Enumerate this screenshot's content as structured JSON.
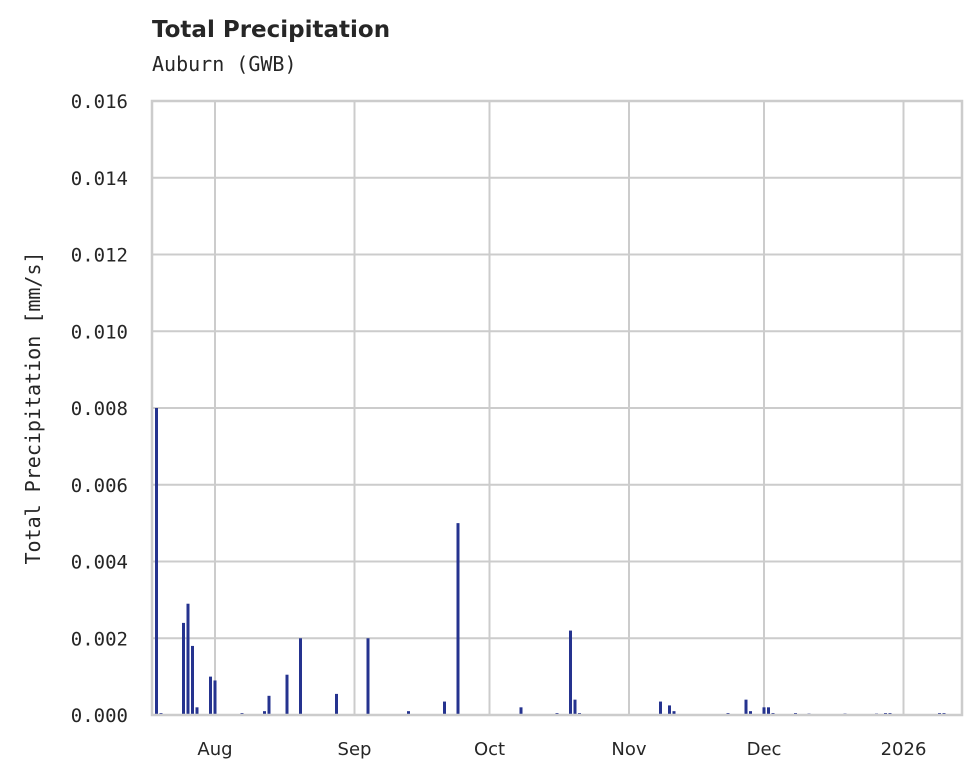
{
  "header": {
    "title": "Total Precipitation",
    "subtitle": "Auburn (GWB)"
  },
  "axes": {
    "ylabel": "Total Precipitation [mm/s]",
    "yticks": [
      "0.000",
      "0.002",
      "0.004",
      "0.006",
      "0.008",
      "0.010",
      "0.012",
      "0.014",
      "0.016"
    ],
    "xticks": [
      "Aug",
      "Sep",
      "Oct",
      "Nov",
      "Dec",
      "2026"
    ]
  },
  "colors": {
    "series": "#25338f",
    "grid": "#cccccc",
    "text": "#262626"
  },
  "chart_data": {
    "type": "bar",
    "title": "Total Precipitation",
    "subtitle": "Auburn (GWB)",
    "xlabel": "",
    "ylabel": "Total Precipitation [mm/s]",
    "ylim": [
      0,
      0.016
    ],
    "yticks": [
      0.0,
      0.002,
      0.004,
      0.006,
      0.008,
      0.01,
      0.012,
      0.014,
      0.016
    ],
    "xticks": [
      "Aug",
      "Sep",
      "Oct",
      "Nov",
      "Dec",
      "2026"
    ],
    "x_range": [
      "2025-07-18",
      "2026-01-14"
    ],
    "grid": true,
    "legend": null,
    "series": [
      {
        "name": "Total Precipitation",
        "points": [
          {
            "date": "2025-07-19",
            "value": 0.0052
          },
          {
            "date": "2025-07-19",
            "value": 0.008
          },
          {
            "date": "2025-07-20",
            "value": 5e-05
          },
          {
            "date": "2025-07-25",
            "value": 0.0024
          },
          {
            "date": "2025-07-26",
            "value": 0.0029
          },
          {
            "date": "2025-07-27",
            "value": 0.0018
          },
          {
            "date": "2025-07-28",
            "value": 0.0002
          },
          {
            "date": "2025-07-31",
            "value": 0.001
          },
          {
            "date": "2025-08-01",
            "value": 0.0009
          },
          {
            "date": "2025-08-07",
            "value": 5e-05
          },
          {
            "date": "2025-08-12",
            "value": 0.0001
          },
          {
            "date": "2025-08-13",
            "value": 0.0005
          },
          {
            "date": "2025-08-17",
            "value": 0.00105
          },
          {
            "date": "2025-08-20",
            "value": 0.001
          },
          {
            "date": "2025-08-20",
            "value": 0.002
          },
          {
            "date": "2025-08-28",
            "value": 0.00055
          },
          {
            "date": "2025-09-04",
            "value": 0.002
          },
          {
            "date": "2025-09-13",
            "value": 0.0001
          },
          {
            "date": "2025-09-21",
            "value": 0.00035
          },
          {
            "date": "2025-09-24",
            "value": 0.005
          },
          {
            "date": "2025-09-24",
            "value": 0.00075
          },
          {
            "date": "2025-10-08",
            "value": 0.0002
          },
          {
            "date": "2025-10-16",
            "value": 5e-05
          },
          {
            "date": "2025-10-19",
            "value": 0.0022
          },
          {
            "date": "2025-10-19",
            "value": 0.0006
          },
          {
            "date": "2025-10-20",
            "value": 0.0004
          },
          {
            "date": "2025-10-21",
            "value": 5e-05
          },
          {
            "date": "2025-11-08",
            "value": 0.00035
          },
          {
            "date": "2025-11-10",
            "value": 0.00025
          },
          {
            "date": "2025-11-11",
            "value": 0.0001
          },
          {
            "date": "2025-11-23",
            "value": 5e-05
          },
          {
            "date": "2025-11-27",
            "value": 0.0004
          },
          {
            "date": "2025-11-28",
            "value": 0.0001
          },
          {
            "date": "2025-12-01",
            "value": 0.0002
          },
          {
            "date": "2025-12-02",
            "value": 0.0002
          },
          {
            "date": "2025-12-03",
            "value": 5e-05
          },
          {
            "date": "2025-12-08",
            "value": 5e-05
          },
          {
            "date": "2025-12-11",
            "value": 3e-05
          },
          {
            "date": "2025-12-19",
            "value": 3e-05
          },
          {
            "date": "2025-12-26",
            "value": 3e-05
          },
          {
            "date": "2025-12-28",
            "value": 5e-05
          },
          {
            "date": "2025-12-29",
            "value": 5e-05
          },
          {
            "date": "2026-01-09",
            "value": 5e-05
          },
          {
            "date": "2026-01-10",
            "value": 5e-05
          }
        ]
      }
    ]
  }
}
